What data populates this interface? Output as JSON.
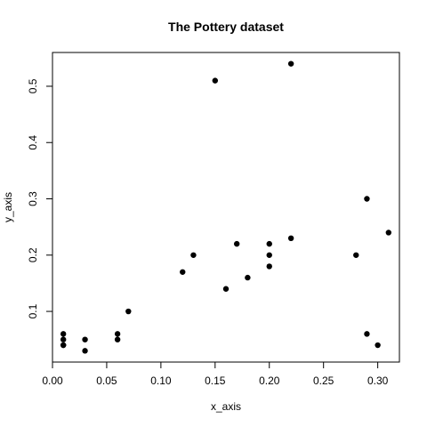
{
  "chart_data": {
    "type": "scatter",
    "title": "The Pottery dataset",
    "xlabel": "x_axis",
    "ylabel": "y_axis",
    "xlim": [
      0.0,
      0.32
    ],
    "ylim": [
      0.01,
      0.56
    ],
    "x_ticks": [
      0.0,
      0.05,
      0.1,
      0.15,
      0.2,
      0.25,
      0.3
    ],
    "x_tick_labels": [
      "0.00",
      "0.05",
      "0.10",
      "0.15",
      "0.20",
      "0.25",
      "0.30"
    ],
    "y_ticks": [
      0.1,
      0.2,
      0.3,
      0.4,
      0.5
    ],
    "y_tick_labels": [
      "0.1",
      "0.2",
      "0.3",
      "0.4",
      "0.5"
    ],
    "grid": false,
    "marker_color": "#000000",
    "points": [
      {
        "x": 0.01,
        "y": 0.06
      },
      {
        "x": 0.01,
        "y": 0.05
      },
      {
        "x": 0.01,
        "y": 0.04
      },
      {
        "x": 0.01,
        "y": 0.04
      },
      {
        "x": 0.03,
        "y": 0.05
      },
      {
        "x": 0.03,
        "y": 0.03
      },
      {
        "x": 0.06,
        "y": 0.06
      },
      {
        "x": 0.06,
        "y": 0.05
      },
      {
        "x": 0.07,
        "y": 0.1
      },
      {
        "x": 0.12,
        "y": 0.17
      },
      {
        "x": 0.13,
        "y": 0.2
      },
      {
        "x": 0.15,
        "y": 0.51
      },
      {
        "x": 0.16,
        "y": 0.14
      },
      {
        "x": 0.17,
        "y": 0.22
      },
      {
        "x": 0.18,
        "y": 0.16
      },
      {
        "x": 0.2,
        "y": 0.22
      },
      {
        "x": 0.2,
        "y": 0.2
      },
      {
        "x": 0.2,
        "y": 0.18
      },
      {
        "x": 0.22,
        "y": 0.54
      },
      {
        "x": 0.22,
        "y": 0.23
      },
      {
        "x": 0.28,
        "y": 0.2
      },
      {
        "x": 0.29,
        "y": 0.3
      },
      {
        "x": 0.29,
        "y": 0.06
      },
      {
        "x": 0.3,
        "y": 0.04
      },
      {
        "x": 0.31,
        "y": 0.24
      }
    ]
  }
}
